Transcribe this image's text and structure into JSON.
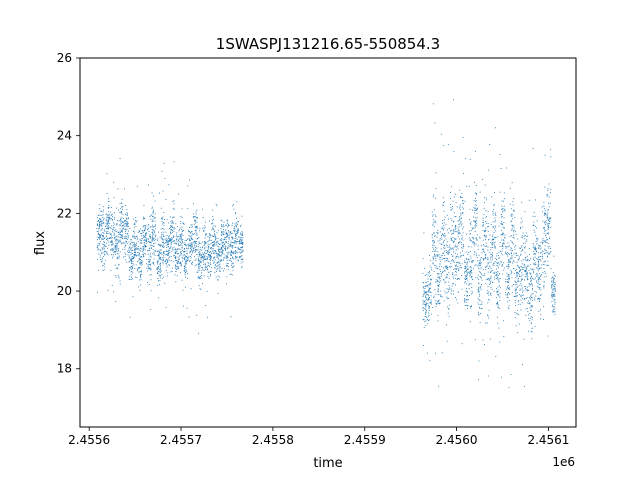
{
  "chart_data": {
    "type": "scatter",
    "title": "1SWASPJ131216.65-550854.3",
    "xlabel": "time",
    "ylabel": "flux",
    "x_offset_label": "1e6",
    "xlim": [
      2.45559,
      2.45613
    ],
    "ylim": [
      16.5,
      26.0
    ],
    "x_ticks": [
      2.4556,
      2.4557,
      2.4558,
      2.4559,
      2.456,
      2.4561
    ],
    "x_tick_labels": [
      "2.4556",
      "2.4557",
      "2.4558",
      "2.4559",
      "2.4560",
      "2.4561"
    ],
    "y_ticks": [
      18,
      20,
      22,
      24,
      26
    ],
    "y_tick_labels": [
      "18",
      "20",
      "22",
      "24",
      "26"
    ],
    "grid": false,
    "marker_color": "#1f77b4",
    "series": [
      {
        "segments": [
          {
            "x": [
              2.45561,
              2.455615,
              2.45562,
              2.455625,
              2.45563,
              2.455635,
              2.45564,
              2.455645,
              2.45565,
              2.455655,
              2.45566,
              2.455665,
              2.45567,
              2.455675,
              2.45568,
              2.455685,
              2.45569,
              2.455695,
              2.4557,
              2.455705,
              2.45571,
              2.455715,
              2.45572,
              2.455725,
              2.45573,
              2.455735,
              2.45574,
              2.455745,
              2.45575,
              2.455755,
              2.45576,
              2.455765
            ],
            "y": [
              21.5,
              21.3,
              21.7,
              21.4,
              21.2,
              21.6,
              21.5,
              20.8,
              21.2,
              20.9,
              21.4,
              21.0,
              21.5,
              20.8,
              21.3,
              21.1,
              21.4,
              21.0,
              21.3,
              20.9,
              21.2,
              21.4,
              20.8,
              21.1,
              21.0,
              21.3,
              20.9,
              21.2,
              21.3,
              21.0,
              21.4,
              21.2
            ],
            "spread": [
              0.6,
              0.6,
              0.6,
              0.6,
              0.7,
              0.6,
              0.6,
              0.6,
              0.7,
              0.6,
              0.6,
              0.7,
              0.7,
              0.6,
              0.7,
              0.6,
              0.7,
              0.6,
              0.7,
              0.6,
              0.6,
              0.7,
              0.6,
              0.6,
              0.6,
              0.6,
              0.5,
              0.6,
              0.6,
              0.6,
              0.6,
              0.5
            ]
          },
          {
            "x": [
              2.455965,
              2.45597,
              2.455975,
              2.45598,
              2.455985,
              2.45599,
              2.455995,
              2.456,
              2.456005,
              2.45601,
              2.456015,
              2.45602,
              2.456025,
              2.45603,
              2.456035,
              2.45604,
              2.456045,
              2.45605,
              2.456055,
              2.45606,
              2.456065,
              2.45607,
              2.456075,
              2.45608,
              2.456085,
              2.45609,
              2.456095,
              2.4561,
              2.456105
            ],
            "y": [
              19.8,
              20.0,
              21.2,
              20.5,
              21.0,
              20.6,
              21.3,
              21.0,
              21.6,
              20.3,
              20.8,
              21.7,
              20.2,
              21.4,
              20.7,
              21.2,
              20.5,
              21.5,
              20.4,
              21.3,
              20.2,
              20.8,
              20.6,
              20.0,
              21.0,
              20.4,
              21.3,
              21.6,
              20.0
            ],
            "spread": [
              0.6,
              0.8,
              1.2,
              1.0,
              1.2,
              1.0,
              1.2,
              1.1,
              1.1,
              1.0,
              1.2,
              1.2,
              1.0,
              1.2,
              1.1,
              1.2,
              1.0,
              1.2,
              1.0,
              1.1,
              1.0,
              1.1,
              1.1,
              0.9,
              1.0,
              0.9,
              1.1,
              1.0,
              0.6
            ]
          }
        ]
      }
    ]
  }
}
